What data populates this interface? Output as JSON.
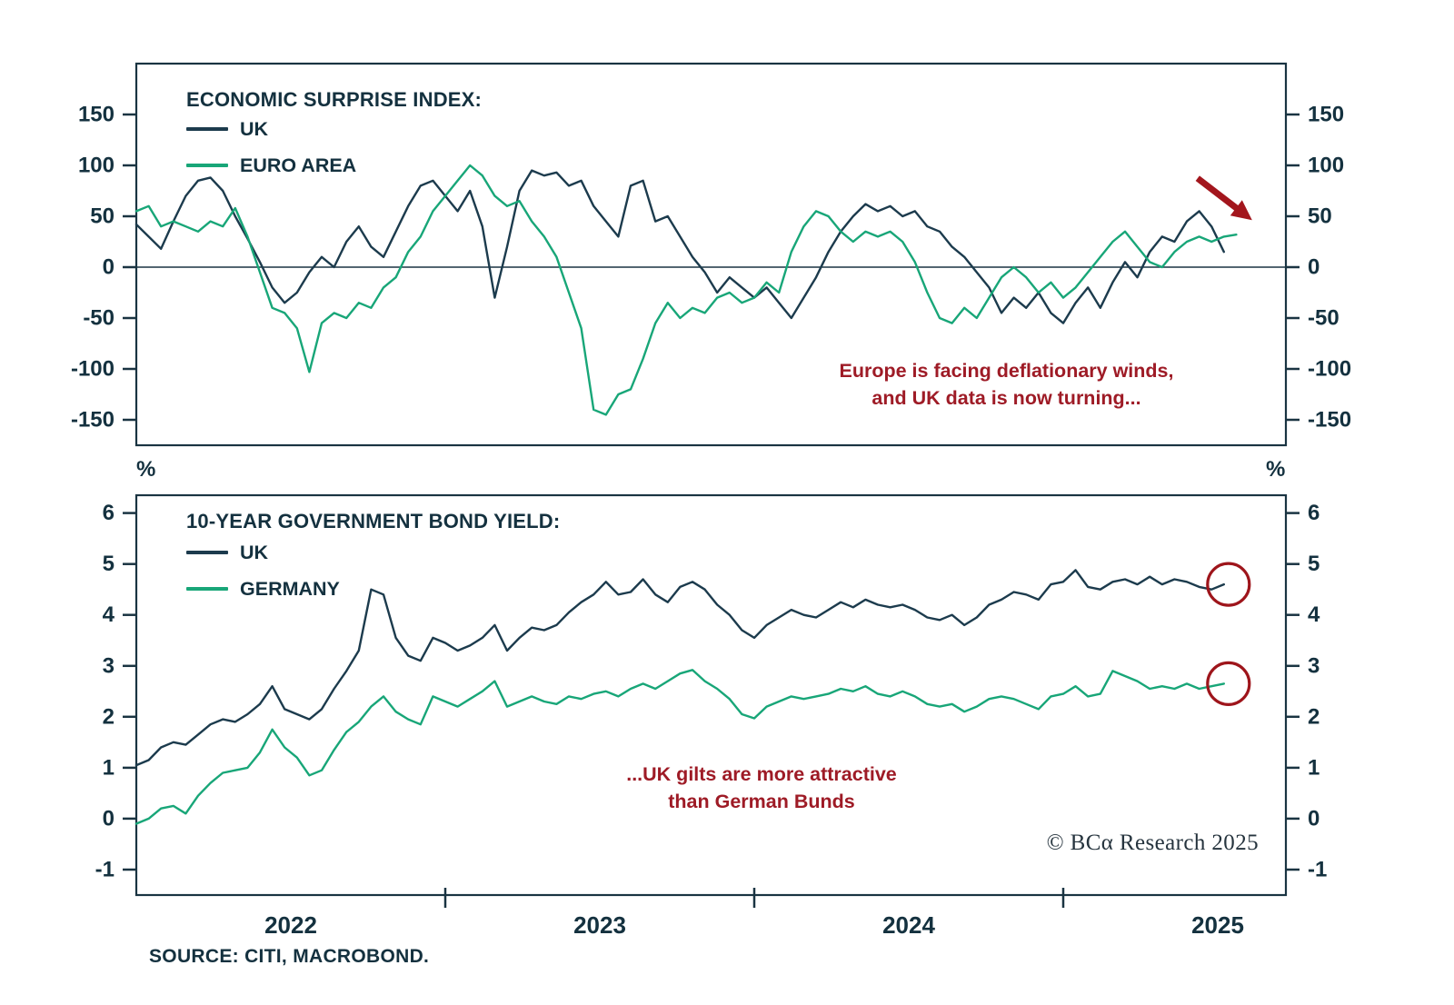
{
  "style": {
    "axis_color": "#1A3442",
    "label_color": "#14313F",
    "annotation_color": "#9E1B26",
    "accent_red": "#A3161D",
    "uk_navy": "#1C3B4D",
    "green": "#18A678"
  },
  "footer": {
    "source": "SOURCE: CITI, MACROBOND.",
    "copyright": "© BCα Research 2025"
  },
  "chart_data": [
    {
      "type": "line",
      "title": "ECONOMIC SURPRISE INDEX:",
      "x_start": 2022.0,
      "x_step": 0.04,
      "x_tick_labels": [
        "2022",
        "2023",
        "2024",
        "2025"
      ],
      "ylim": [
        -175,
        200
      ],
      "yticks": [
        150,
        100,
        50,
        0,
        -50,
        -100,
        -150
      ],
      "zero_line": true,
      "legend_position": "top-left",
      "grid": false,
      "annotation": "Europe is facing deflationary winds,\nand UK data is now turning...",
      "series": [
        {
          "name": "UK",
          "color": "#1C3B4D",
          "values": [
            42,
            30,
            18,
            45,
            70,
            85,
            88,
            75,
            50,
            28,
            5,
            -20,
            -35,
            -25,
            -5,
            10,
            0,
            25,
            40,
            20,
            10,
            35,
            60,
            80,
            85,
            70,
            55,
            75,
            40,
            -30,
            20,
            75,
            95,
            90,
            93,
            80,
            85,
            60,
            45,
            30,
            80,
            85,
            45,
            50,
            30,
            10,
            -5,
            -25,
            -10,
            -20,
            -30,
            -20,
            -35,
            -50,
            -30,
            -10,
            15,
            35,
            50,
            62,
            55,
            60,
            50,
            55,
            40,
            35,
            20,
            10,
            -5,
            -20,
            -45,
            -30,
            -40,
            -25,
            -45,
            -55,
            -35,
            -20,
            -40,
            -15,
            5,
            -10,
            15,
            30,
            25,
            45,
            55,
            40,
            15
          ]
        },
        {
          "name": "EURO AREA",
          "color": "#18A678",
          "values": [
            55,
            60,
            40,
            45,
            40,
            35,
            45,
            40,
            58,
            30,
            -5,
            -40,
            -45,
            -60,
            -103,
            -55,
            -45,
            -50,
            -35,
            -40,
            -20,
            -10,
            15,
            30,
            55,
            70,
            85,
            100,
            90,
            70,
            60,
            65,
            45,
            30,
            10,
            -25,
            -60,
            -140,
            -145,
            -125,
            -120,
            -90,
            -55,
            -35,
            -50,
            -40,
            -45,
            -30,
            -25,
            -35,
            -30,
            -15,
            -25,
            15,
            40,
            55,
            50,
            35,
            25,
            35,
            30,
            35,
            25,
            5,
            -25,
            -50,
            -55,
            -40,
            -50,
            -30,
            -10,
            0,
            -10,
            -25,
            -15,
            -30,
            -20,
            -5,
            10,
            25,
            35,
            20,
            5,
            0,
            15,
            25,
            30,
            25,
            30,
            32
          ]
        }
      ]
    },
    {
      "type": "line",
      "title": "10-YEAR GOVERNMENT BOND YIELD:",
      "unit": "%",
      "x_start": 2022.0,
      "x_step": 0.04,
      "x_tick_labels": [
        "2022",
        "2023",
        "2024",
        "2025"
      ],
      "ylim": [
        -1.5,
        6.35
      ],
      "yticks": [
        6,
        5,
        4,
        3,
        2,
        1,
        0,
        -1
      ],
      "zero_line": false,
      "legend_position": "top-left",
      "grid": false,
      "annotation": "...UK gilts are more attractive\nthan German Bunds",
      "end_circles": true,
      "series": [
        {
          "name": "UK",
          "color": "#1C3B4D",
          "values": [
            1.05,
            1.15,
            1.4,
            1.5,
            1.45,
            1.65,
            1.85,
            1.95,
            1.9,
            2.05,
            2.25,
            2.6,
            2.15,
            2.05,
            1.95,
            2.15,
            2.55,
            2.9,
            3.3,
            4.5,
            4.4,
            3.55,
            3.2,
            3.1,
            3.55,
            3.45,
            3.3,
            3.4,
            3.55,
            3.8,
            3.3,
            3.55,
            3.75,
            3.7,
            3.8,
            4.05,
            4.25,
            4.4,
            4.65,
            4.4,
            4.45,
            4.7,
            4.4,
            4.25,
            4.55,
            4.65,
            4.5,
            4.2,
            4.0,
            3.7,
            3.55,
            3.8,
            3.95,
            4.1,
            4.0,
            3.95,
            4.1,
            4.25,
            4.15,
            4.3,
            4.2,
            4.15,
            4.2,
            4.1,
            3.95,
            3.9,
            4.0,
            3.8,
            3.95,
            4.2,
            4.3,
            4.45,
            4.4,
            4.3,
            4.6,
            4.65,
            4.88,
            4.55,
            4.5,
            4.65,
            4.7,
            4.6,
            4.75,
            4.6,
            4.7,
            4.65,
            4.55,
            4.5,
            4.6
          ]
        },
        {
          "name": "GERMANY",
          "color": "#18A678",
          "values": [
            -0.1,
            0.0,
            0.2,
            0.25,
            0.1,
            0.45,
            0.7,
            0.9,
            0.95,
            1.0,
            1.3,
            1.75,
            1.4,
            1.2,
            0.85,
            0.95,
            1.35,
            1.7,
            1.9,
            2.2,
            2.4,
            2.1,
            1.95,
            1.85,
            2.4,
            2.3,
            2.2,
            2.35,
            2.5,
            2.7,
            2.2,
            2.3,
            2.4,
            2.3,
            2.25,
            2.4,
            2.35,
            2.45,
            2.5,
            2.4,
            2.55,
            2.65,
            2.55,
            2.7,
            2.85,
            2.92,
            2.7,
            2.55,
            2.35,
            2.05,
            1.97,
            2.2,
            2.3,
            2.4,
            2.35,
            2.4,
            2.45,
            2.55,
            2.5,
            2.6,
            2.45,
            2.4,
            2.5,
            2.4,
            2.25,
            2.2,
            2.25,
            2.1,
            2.2,
            2.35,
            2.4,
            2.35,
            2.25,
            2.15,
            2.4,
            2.45,
            2.6,
            2.4,
            2.45,
            2.9,
            2.8,
            2.7,
            2.55,
            2.6,
            2.55,
            2.65,
            2.55,
            2.6,
            2.65
          ]
        }
      ]
    }
  ]
}
